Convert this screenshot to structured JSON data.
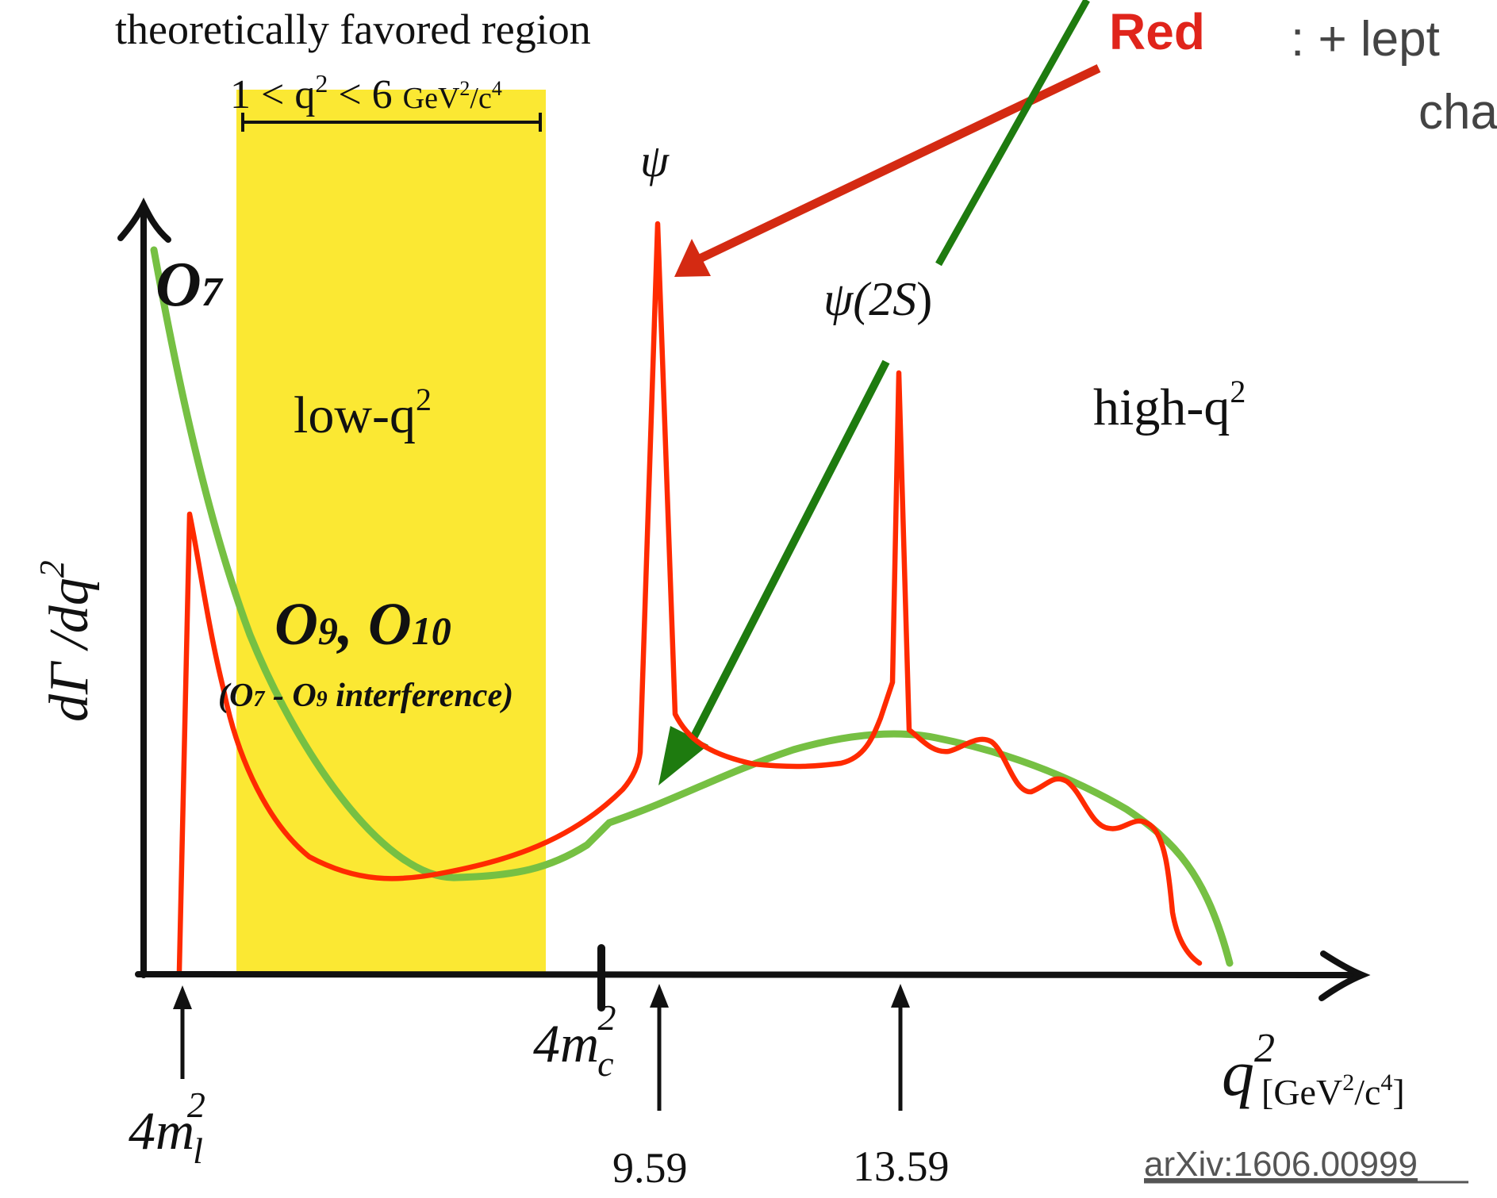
{
  "header": {
    "favored_title": "theoretically favored region",
    "favored_range_prefix": "1 < q",
    "favored_range_mid": " < 6 ",
    "favored_range_unit": "GeV",
    "favored_range_unit_mid": "/c",
    "sup2": "2",
    "sup4": "4"
  },
  "legend": {
    "red_word": "Red",
    "red_desc_line1": ": + lept",
    "red_desc_line2": "cha"
  },
  "resonances": {
    "psi": "ψ",
    "psi2s_main": "ψ(2",
    "psi2s_S": "S",
    "psi2s_close": ")"
  },
  "regions": {
    "low_main": "low-q",
    "high_main": "high-q",
    "sup2": "2"
  },
  "operators": {
    "o7_main": "O",
    "o7_sub": "7",
    "o9_main": "O",
    "o9_sub": "9",
    "sep": ", ",
    "o10_main": "O",
    "o10_sub": "10",
    "interf_open": "(O",
    "interf_sub7": "7",
    "interf_mid": " - O",
    "interf_sub9": "9",
    "interf_rest": " interference)"
  },
  "axes": {
    "y_label_main": "dΓ /dq",
    "y_sup": "2",
    "x_label_main": "q",
    "x_sup": "2",
    "x_unit": "[GeV",
    "x_unit_mid": "/c",
    "x_unit_close": "]",
    "sup2": "2",
    "sup4": "4"
  },
  "markers": {
    "ml_coef": "4m",
    "ml_sub": "l",
    "ml_sup": "2",
    "mc_coef": "4m",
    "mc_sub": "c",
    "mc_sup": "2",
    "psi_value": "9.59",
    "psi2s_value": "13.59"
  },
  "footer": {
    "reference": "arXiv:1606.00999"
  },
  "colors": {
    "band": "#fbe833",
    "green_curve": "#76c043",
    "red_curve": "#ff2a00",
    "red_arrow": "#d42a12",
    "green_arrow": "#1e7b0f",
    "legend_red": "#e0241b",
    "gray_text": "#444444"
  }
}
